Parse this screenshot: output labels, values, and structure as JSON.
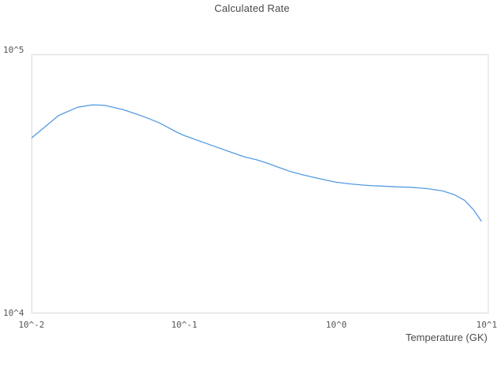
{
  "chart_data": {
    "type": "line",
    "title": "Calculated Rate",
    "xlabel": "Temperature (GK)",
    "ylabel": "",
    "x_scale": "log",
    "y_scale": "log",
    "xlim": [
      0.01,
      10
    ],
    "ylim": [
      10000,
      100000
    ],
    "grid": false,
    "legend": false,
    "x_tick_values": [
      0.01,
      0.1,
      1,
      10
    ],
    "x_tick_labels": [
      "10^-2",
      "10^-1",
      "10^0",
      "10^1"
    ],
    "y_tick_values": [
      10000,
      100000
    ],
    "y_tick_labels": [
      "10^4",
      "10^5"
    ],
    "series": [
      {
        "name": "Calculated Rate",
        "color": "#549be2",
        "x": [
          0.01,
          0.015,
          0.02,
          0.025,
          0.03,
          0.04,
          0.05,
          0.06,
          0.07,
          0.08,
          0.09,
          0.1,
          0.15,
          0.2,
          0.25,
          0.3,
          0.35,
          0.4,
          0.45,
          0.5,
          0.6,
          0.7,
          0.8,
          0.9,
          1.0,
          1.25,
          1.5,
          1.75,
          2.0,
          2.5,
          3.0,
          3.5,
          4.0,
          5.0,
          6.0,
          7.0,
          8.0,
          9.0
        ],
        "y": [
          47700,
          58200,
          62600,
          64000,
          63700,
          61200,
          58600,
          56300,
          54200,
          52000,
          50100,
          48700,
          44700,
          42100,
          40200,
          39200,
          38100,
          37000,
          36100,
          35300,
          34300,
          33600,
          33000,
          32500,
          32100,
          31600,
          31300,
          31100,
          31000,
          30800,
          30700,
          30500,
          30300,
          29700,
          28700,
          27300,
          25100,
          22700
        ]
      }
    ]
  },
  "colors": {
    "background": "#ffffff",
    "line": "#549be2",
    "frame": "#d9d9d9",
    "title_text": "#4a4a4a",
    "tick_text": "#555555"
  }
}
